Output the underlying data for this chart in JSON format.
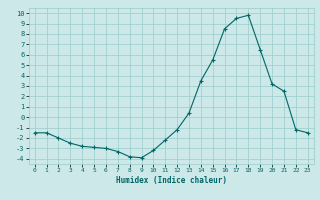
{
  "x": [
    0,
    1,
    2,
    3,
    4,
    5,
    6,
    7,
    8,
    9,
    10,
    11,
    12,
    13,
    14,
    15,
    16,
    17,
    18,
    19,
    20,
    21,
    22,
    23
  ],
  "y": [
    -1.5,
    -1.5,
    -2.0,
    -2.5,
    -2.8,
    -2.9,
    -3.0,
    -3.3,
    -3.8,
    -3.9,
    -3.2,
    -2.2,
    -1.2,
    0.4,
    3.5,
    5.5,
    8.5,
    9.5,
    9.8,
    6.5,
    3.2,
    2.5,
    -1.2,
    -1.5
  ],
  "xlabel": "Humidex (Indice chaleur)",
  "bg_color": "#cce8e8",
  "grid_color": "#99cccc",
  "line_color": "#006666",
  "marker": "+",
  "ylim": [
    -4.5,
    10.5
  ],
  "xlim": [
    -0.5,
    23.5
  ],
  "yticks": [
    -4,
    -3,
    -2,
    -1,
    0,
    1,
    2,
    3,
    4,
    5,
    6,
    7,
    8,
    9,
    10
  ],
  "xticks": [
    0,
    1,
    2,
    3,
    4,
    5,
    6,
    7,
    8,
    9,
    10,
    11,
    12,
    13,
    14,
    15,
    16,
    17,
    18,
    19,
    20,
    21,
    22,
    23
  ]
}
